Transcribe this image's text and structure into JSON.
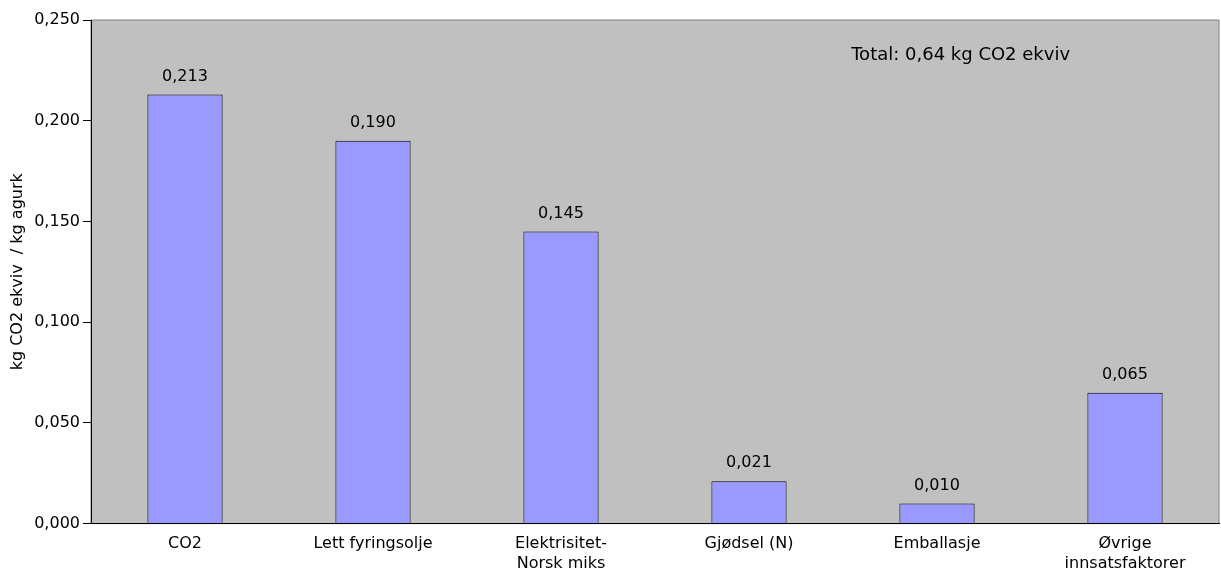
{
  "chart_data": {
    "type": "bar",
    "ylabel": "kg CO2 ekviv  / kg agurk",
    "categories": [
      "CO2",
      "Lett fyringsolje",
      "Elektrisitet-\nNorsk miks",
      "Gjødsel (N)",
      "Emballasje",
      "Øvrige\ninnsatsfaktorer"
    ],
    "values": [
      0.213,
      0.19,
      0.145,
      0.021,
      0.01,
      0.065
    ],
    "value_labels": [
      "0,213",
      "0,190",
      "0,145",
      "0,021",
      "0,010",
      "0,065"
    ],
    "color": "#9999ff",
    "ylim": [
      0,
      0.25
    ],
    "yticks": [
      {
        "value": 0,
        "label": "0,000"
      },
      {
        "value": 0.05,
        "label": "0,050"
      },
      {
        "value": 0.1,
        "label": "0,100"
      },
      {
        "value": 0.15,
        "label": "0,150"
      },
      {
        "value": 0.2,
        "label": "0,200"
      },
      {
        "value": 0.25,
        "label": "0,250"
      }
    ],
    "annotations": [
      "Total: 0,64 kg CO2 ekviv"
    ],
    "grid": false,
    "legend": false
  }
}
